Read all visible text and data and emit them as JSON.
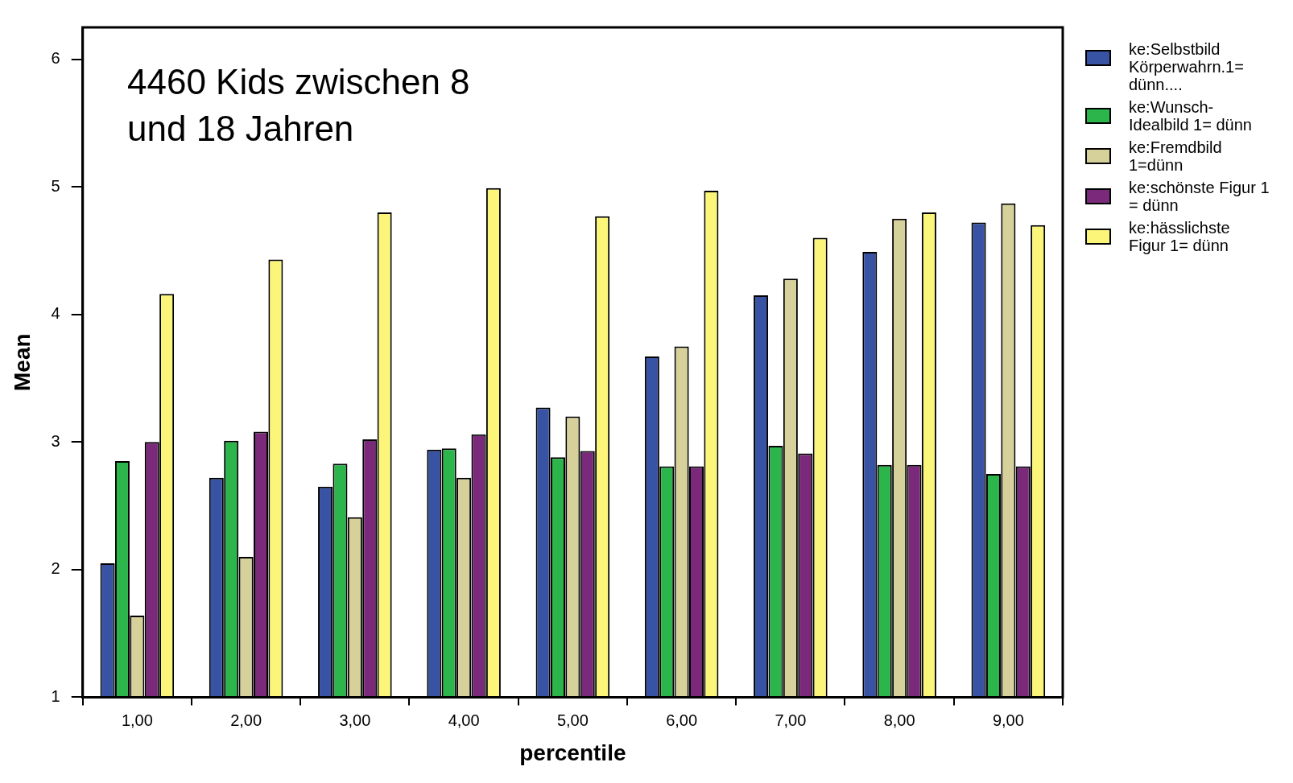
{
  "chart_data": {
    "type": "bar",
    "xlabel": "percentile",
    "ylabel": "Mean",
    "annotations": [
      "4460 Kids zwischen 8 und 18 Jahren"
    ],
    "categories": [
      "1,00",
      "2,00",
      "3,00",
      "4,00",
      "5,00",
      "6,00",
      "7,00",
      "8,00",
      "9,00"
    ],
    "series": [
      {
        "name": "ke:Selbstbild Körperwahrn.1= dünn....",
        "color": "#3953a4",
        "values": [
          2.05,
          2.72,
          2.65,
          2.94,
          3.27,
          3.67,
          4.15,
          4.49,
          4.72
        ]
      },
      {
        "name": "ke:Wunsch-Idealbild 1= dünn",
        "color": "#2bb54a",
        "values": [
          2.85,
          3.01,
          2.83,
          2.95,
          2.88,
          2.81,
          2.97,
          2.82,
          2.75
        ]
      },
      {
        "name": "ke:Fremdbild 1=dünn",
        "color": "#d6d09a",
        "values": [
          1.64,
          2.1,
          2.41,
          2.72,
          3.2,
          3.75,
          4.28,
          4.75,
          4.87
        ]
      },
      {
        "name": "ke:schönste Figur 1 = dünn",
        "color": "#7b2a7b",
        "values": [
          3.0,
          3.08,
          3.02,
          3.06,
          2.93,
          2.81,
          2.91,
          2.82,
          2.81
        ]
      },
      {
        "name": "ke:hässlichste Figur 1= dünn",
        "color": "#fbf67a",
        "values": [
          4.16,
          4.43,
          4.8,
          4.99,
          4.77,
          4.97,
          4.6,
          4.8,
          4.7
        ]
      }
    ],
    "ylim": [
      1,
      6.25
    ],
    "yticks": [
      1,
      2,
      3,
      4,
      5,
      6
    ],
    "grid": false,
    "legend": "right"
  }
}
